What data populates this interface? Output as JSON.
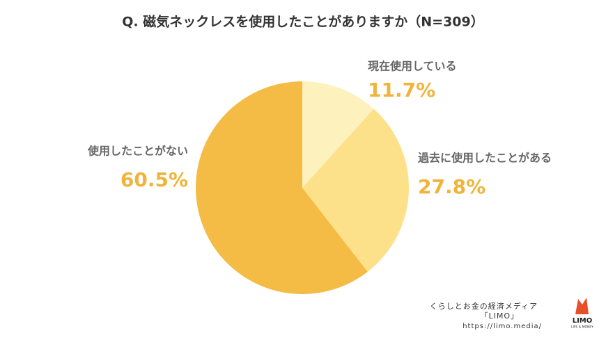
{
  "chart_data": {
    "type": "pie",
    "title": "Q. 磁気ネックレスを使用したことがありますか（N=309）",
    "categories": [
      "現在使用している",
      "過去に使用したことがある",
      "使用したことがない"
    ],
    "values": [
      11.7,
      27.8,
      60.5
    ],
    "value_labels": [
      "11.7%",
      "27.8%",
      "60.5%"
    ],
    "colors": [
      "#fdf1bd",
      "#fde18a",
      "#f4bc45"
    ]
  },
  "footer": {
    "line1": "くらしとお金の経済メディア",
    "line2": "「LIMO」",
    "url": "https://limo.media/",
    "logo": "LIMO",
    "logo_sub": "LIFE & MONEY"
  }
}
